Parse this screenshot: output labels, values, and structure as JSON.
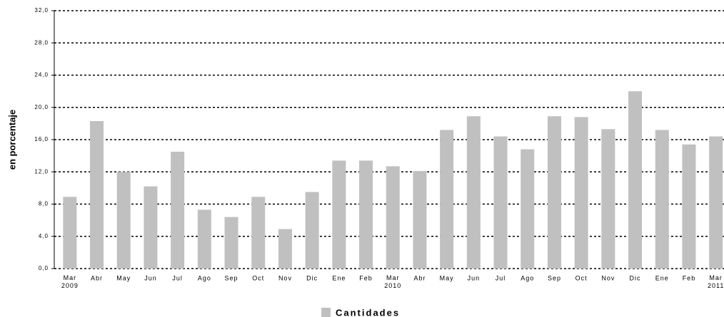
{
  "chart_data": {
    "type": "bar",
    "y_axis_label": "en porcentaje",
    "categories": [
      "Mar\n2009",
      "Abr",
      "May",
      "Jun",
      "Jul",
      "Ago",
      "Sep",
      "Oct",
      "Nov",
      "Dic",
      "Ene",
      "Feb",
      "Mar\n2010",
      "Abr",
      "May",
      "Jun",
      "Jul",
      "Ago",
      "Sep",
      "Oct",
      "Nov",
      "Dic",
      "Ene",
      "Feb",
      "Mar\n2011"
    ],
    "series": [
      {
        "name": "Cantidades",
        "color": "#c0c0c0",
        "values": [
          8.9,
          18.3,
          12.0,
          10.2,
          14.5,
          7.3,
          6.4,
          8.9,
          4.9,
          9.5,
          13.4,
          13.4,
          12.7,
          12.1,
          17.2,
          18.9,
          16.4,
          14.8,
          18.9,
          18.8,
          17.3,
          22.0,
          17.2,
          15.4,
          16.4
        ]
      }
    ],
    "ylim": [
      0,
      32
    ],
    "yticks": [
      {
        "value": 0,
        "label": "0,0"
      },
      {
        "value": 4,
        "label": "4,0"
      },
      {
        "value": 8,
        "label": "8,0"
      },
      {
        "value": 12,
        "label": "12,0"
      },
      {
        "value": 16,
        "label": "16,0"
      },
      {
        "value": 20,
        "label": "20,0"
      },
      {
        "value": 24,
        "label": "24,0"
      },
      {
        "value": 28,
        "label": "28,0"
      },
      {
        "value": 32,
        "label": "32,0"
      }
    ],
    "grid": true
  }
}
